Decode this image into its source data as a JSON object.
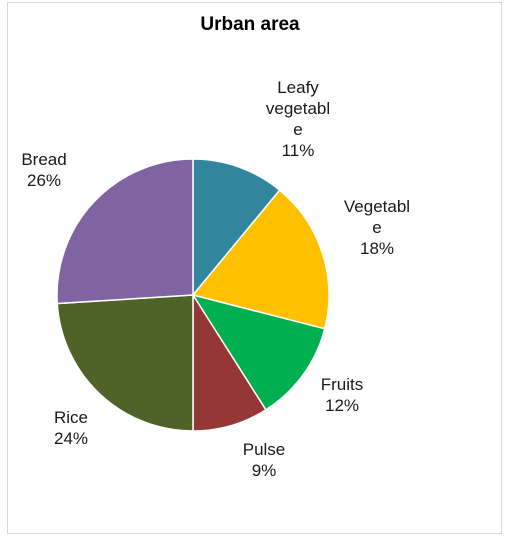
{
  "chart_data": {
    "type": "pie",
    "title": "Urban area",
    "categories": [
      "Leafy vegetable",
      "Vegetable",
      "Fruits",
      "Pulse",
      "Rice",
      "Bread"
    ],
    "values": [
      11,
      18,
      12,
      9,
      24,
      26
    ],
    "labels": [
      [
        "Leafy",
        "vegetabl",
        "e",
        "11%"
      ],
      [
        "Vegetabl",
        "e",
        "18%"
      ],
      [
        "Fruits",
        "12%"
      ],
      [
        "Pulse",
        "9%"
      ],
      [
        "Rice",
        "24%"
      ],
      [
        "Bread",
        "26%"
      ]
    ],
    "colors": [
      "#31859c",
      "#ffc000",
      "#00b050",
      "#953735",
      "#4f6228",
      "#8064a2"
    ],
    "legend": "none",
    "start_angle": "12 o'clock, clockwise"
  }
}
